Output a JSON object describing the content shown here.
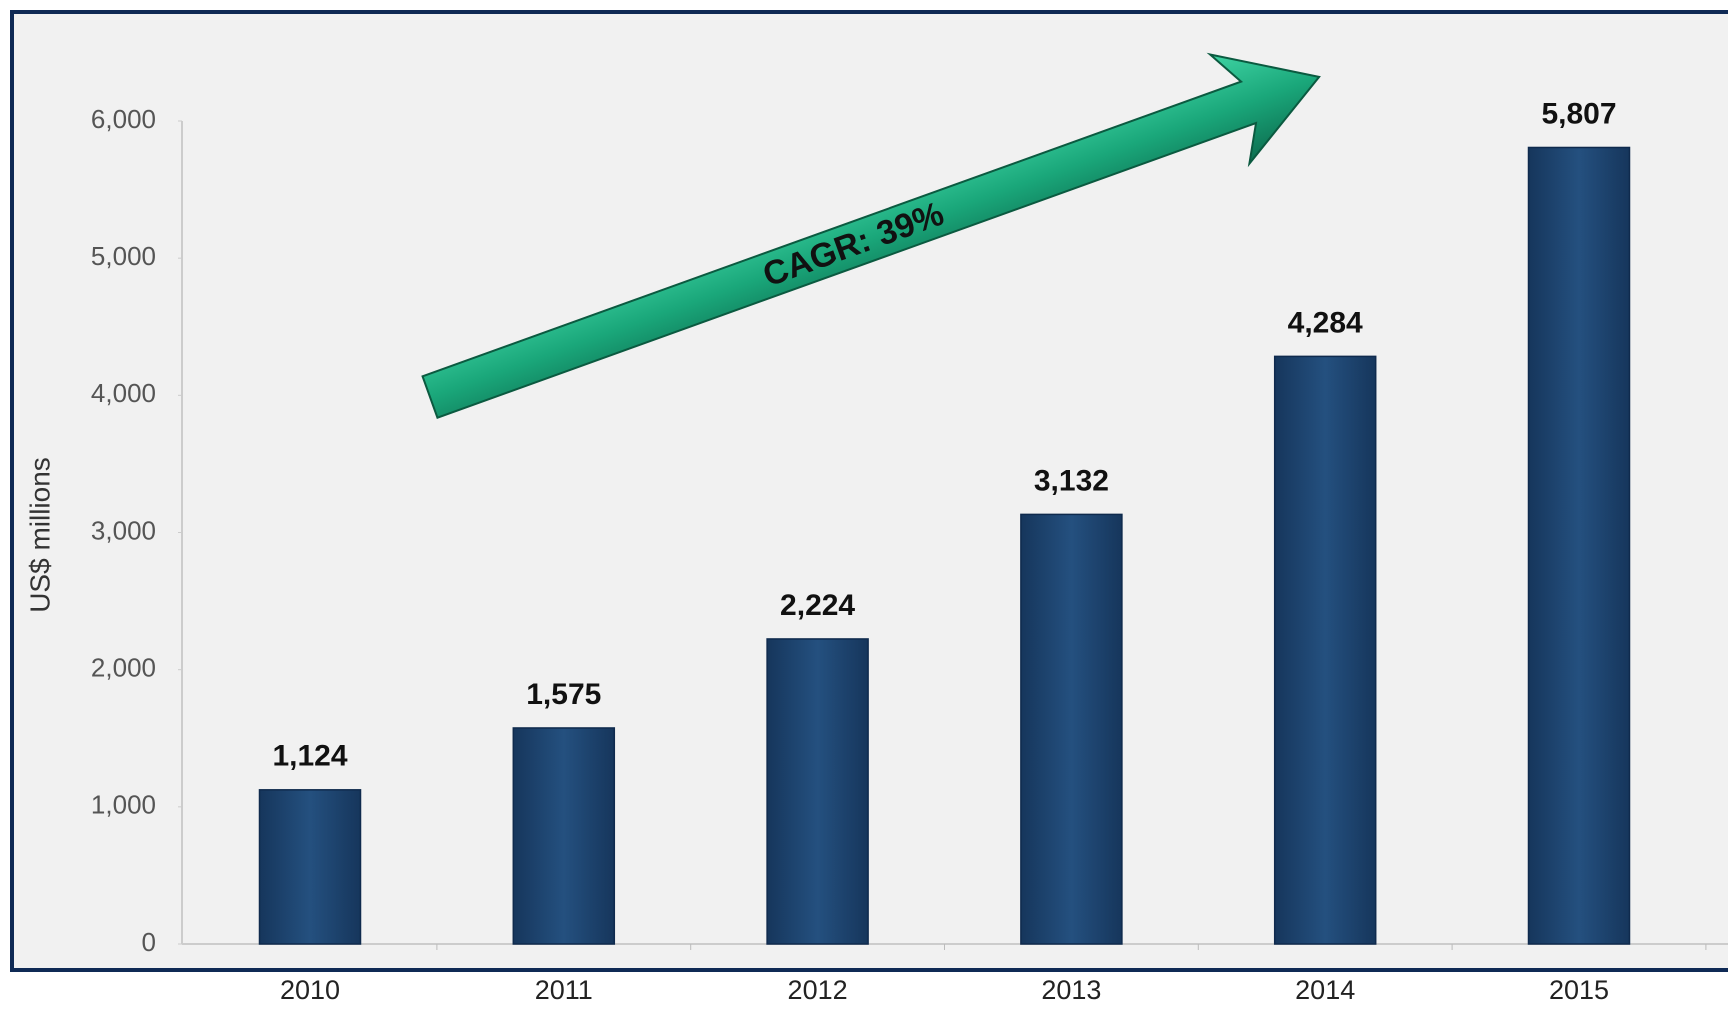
{
  "chart_data": {
    "type": "bar",
    "y_axis_label": "US$ millions",
    "annotation": "CAGR: 39%",
    "categories": [
      "2010",
      "2011",
      "2012",
      "2013",
      "2014",
      "2015"
    ],
    "values": [
      1124,
      1575,
      2224,
      3132,
      4284,
      5807
    ],
    "value_labels": [
      "1,124",
      "1,575",
      "2,224",
      "3,132",
      "4,284",
      "5,807"
    ],
    "color": "#1f4570",
    "ylim": [
      0,
      6000
    ],
    "yticks": [
      0,
      {
        "value": 1000,
        "label": "1,000"
      },
      {
        "value": 2000,
        "label": "2,000"
      },
      {
        "value": 3000,
        "label": "3,000"
      },
      {
        "value": 4000,
        "label": "4,000"
      },
      {
        "value": 5000,
        "label": "5,000"
      },
      {
        "value": 6000,
        "label": "6,000"
      }
    ]
  }
}
